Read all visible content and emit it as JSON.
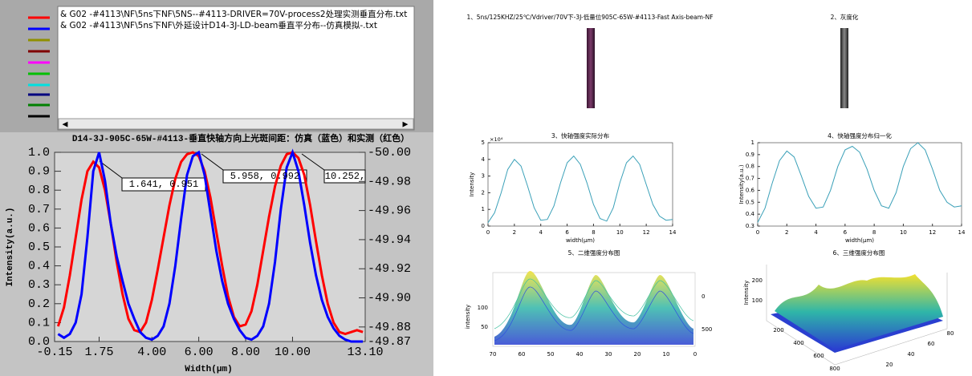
{
  "file_list": [
    "& G02 -#4113\\NF\\5ns下NF\\5NS--#4113-DRIVER=70V-process2处理实测垂直分布.txt",
    "& G02 -#4113\\NF\\5ns下NF\\外延设计D14-3J-LD-beam垂直平分布--仿真模拟-.txt"
  ],
  "chart_data": [
    {
      "type": "line",
      "title": "D14-3J-905C-65W-#4113-垂直快轴方向上光斑间距：仿真（蓝色）和实测（红色）",
      "x_label": "Width(μm)",
      "y_label": "Intensity(a.u.)",
      "x": [
        0,
        0.25,
        0.5,
        0.75,
        1,
        1.25,
        1.5,
        1.75,
        2,
        2.25,
        2.5,
        2.75,
        3,
        3.25,
        3.5,
        3.75,
        4,
        4.25,
        4.5,
        4.75,
        5,
        5.25,
        5.5,
        5.75,
        6,
        6.25,
        6.5,
        6.75,
        7,
        7.25,
        7.5,
        7.75,
        8,
        8.25,
        8.5,
        8.75,
        9,
        9.25,
        9.5,
        9.75,
        10,
        10.25,
        10.5,
        10.75,
        11,
        11.25,
        11.5,
        11.75,
        12,
        12.25,
        12.5,
        12.75,
        13
      ],
      "series": [
        {
          "color": "#ff0000",
          "values": [
            0.08,
            0.18,
            0.35,
            0.55,
            0.75,
            0.9,
            0.95,
            0.92,
            0.8,
            0.62,
            0.42,
            0.25,
            0.12,
            0.06,
            0.05,
            0.1,
            0.22,
            0.38,
            0.55,
            0.72,
            0.86,
            0.95,
            0.99,
            1.0,
            0.98,
            0.9,
            0.76,
            0.58,
            0.4,
            0.24,
            0.13,
            0.08,
            0.09,
            0.16,
            0.3,
            0.48,
            0.66,
            0.82,
            0.93,
            0.99,
            1.0,
            0.97,
            0.88,
            0.72,
            0.53,
            0.35,
            0.2,
            0.1,
            0.05,
            0.04,
            0.05,
            0.06,
            0.05
          ]
        },
        {
          "color": "#0000ff",
          "values": [
            0.04,
            0.02,
            0.04,
            0.1,
            0.25,
            0.55,
            0.9,
            1.0,
            0.85,
            0.62,
            0.45,
            0.32,
            0.2,
            0.12,
            0.05,
            0.02,
            0.01,
            0.03,
            0.08,
            0.2,
            0.4,
            0.65,
            0.88,
            0.98,
            1.0,
            0.88,
            0.68,
            0.48,
            0.32,
            0.2,
            0.12,
            0.06,
            0.02,
            0.01,
            0.03,
            0.08,
            0.2,
            0.42,
            0.7,
            0.92,
            1.0,
            0.9,
            0.72,
            0.52,
            0.35,
            0.22,
            0.13,
            0.07,
            0.03,
            0.01,
            0,
            0,
            0
          ]
        }
      ],
      "xlim": [
        -0.15,
        13.1
      ],
      "xticks": [
        {
          "value": -0.15,
          "label": "-0.15"
        },
        {
          "value": 1.75,
          "label": "1.75"
        },
        {
          "value": 4,
          "label": "4.00"
        },
        {
          "value": 6,
          "label": "6.00"
        },
        {
          "value": 8,
          "label": "8.00"
        },
        {
          "value": 10,
          "label": "10.00"
        },
        {
          "value": 13.1,
          "label": "13.10"
        }
      ],
      "ylim": [
        0,
        1
      ],
      "yticks": [
        {
          "value": 0,
          "label": "0.0"
        },
        0.1,
        0.2,
        0.3,
        0.4,
        0.5,
        0.6,
        0.7,
        0.8,
        0.9,
        {
          "value": 1,
          "label": "1.0"
        }
      ],
      "y2lim": [
        -49.87,
        -50
      ],
      "y2ticks": [
        {
          "value": -50,
          "label": "-50.00"
        },
        -49.98,
        -49.96,
        -49.94,
        -49.92,
        {
          "value": -49.9,
          "label": "-49.90"
        },
        -49.88,
        -49.87
      ],
      "annotations": [
        "1.641, 0.951",
        "5.958, 0.992",
        "10.252,"
      ]
    },
    {
      "type": "line",
      "title": "3、快轴强度实际分布",
      "x_label": "width(μm)",
      "y_label": "Intensity",
      "y_exponent": "×10⁴",
      "x": [
        0,
        0.5,
        1,
        1.5,
        2,
        2.5,
        3,
        3.5,
        4,
        4.5,
        5,
        5.5,
        6,
        6.5,
        7,
        7.5,
        8,
        8.5,
        9,
        9.5,
        10,
        10.5,
        11,
        11.5,
        12,
        12.5,
        13,
        13.5,
        14
      ],
      "series": [
        {
          "color": "#3aa0b8",
          "values": [
            0.2,
            0.8,
            2.0,
            3.4,
            4.0,
            3.6,
            2.4,
            1.1,
            0.35,
            0.4,
            1.2,
            2.6,
            3.8,
            4.2,
            3.7,
            2.6,
            1.3,
            0.45,
            0.3,
            1.1,
            2.6,
            3.8,
            4.2,
            3.7,
            2.5,
            1.3,
            0.6,
            0.35,
            0.4
          ]
        }
      ],
      "xlim": [
        0,
        14
      ],
      "xticks": [
        0,
        2,
        4,
        6,
        8,
        10,
        12,
        14
      ],
      "ylim": [
        0,
        5
      ],
      "yticks": [
        0,
        1,
        2,
        3,
        4,
        5
      ]
    },
    {
      "type": "line",
      "title": "4、快轴强度分布归一化",
      "x_label": "width(μm)",
      "y_label": "Intensity(a.u.)",
      "x": [
        0,
        0.5,
        1,
        1.5,
        2,
        2.5,
        3,
        3.5,
        4,
        4.5,
        5,
        5.5,
        6,
        6.5,
        7,
        7.5,
        8,
        8.5,
        9,
        9.5,
        10,
        10.5,
        11,
        11.5,
        12,
        12.5,
        13,
        13.5,
        14
      ],
      "series": [
        {
          "color": "#3aa0b8",
          "values": [
            0.33,
            0.45,
            0.66,
            0.85,
            0.93,
            0.88,
            0.72,
            0.55,
            0.45,
            0.46,
            0.6,
            0.8,
            0.94,
            0.97,
            0.92,
            0.78,
            0.6,
            0.47,
            0.45,
            0.58,
            0.8,
            0.95,
            1.0,
            0.94,
            0.78,
            0.6,
            0.5,
            0.46,
            0.47
          ]
        }
      ],
      "xlim": [
        0,
        14
      ],
      "xticks": [
        0,
        2,
        4,
        6,
        8,
        10,
        12,
        14
      ],
      "ylim": [
        0.3,
        1
      ],
      "yticks": [
        0.3,
        0.4,
        0.5,
        0.6,
        0.7,
        0.8,
        0.9,
        1
      ]
    }
  ],
  "images": [
    {
      "title": "1、5ns/125KHZ/25℃/Vdriver/70V下-3J-低量位905C-65W-#4113-Fast Axis-beam-NF"
    },
    {
      "title": "2、灰度化"
    }
  ],
  "waterfall": {
    "title": "5、二维强度分布图",
    "y_label": "intensity",
    "yticks": [
      50,
      100
    ],
    "xticks": [
      70,
      60,
      50,
      40,
      30,
      20,
      10,
      0
    ],
    "zticks": [
      0,
      500
    ]
  },
  "surface": {
    "title": "6、三维强度分布图",
    "z_label": "Intensity",
    "zticks": [
      100,
      200
    ],
    "xticks": [
      200,
      400,
      600,
      800
    ],
    "yticks": [
      20,
      40,
      60,
      80
    ]
  }
}
